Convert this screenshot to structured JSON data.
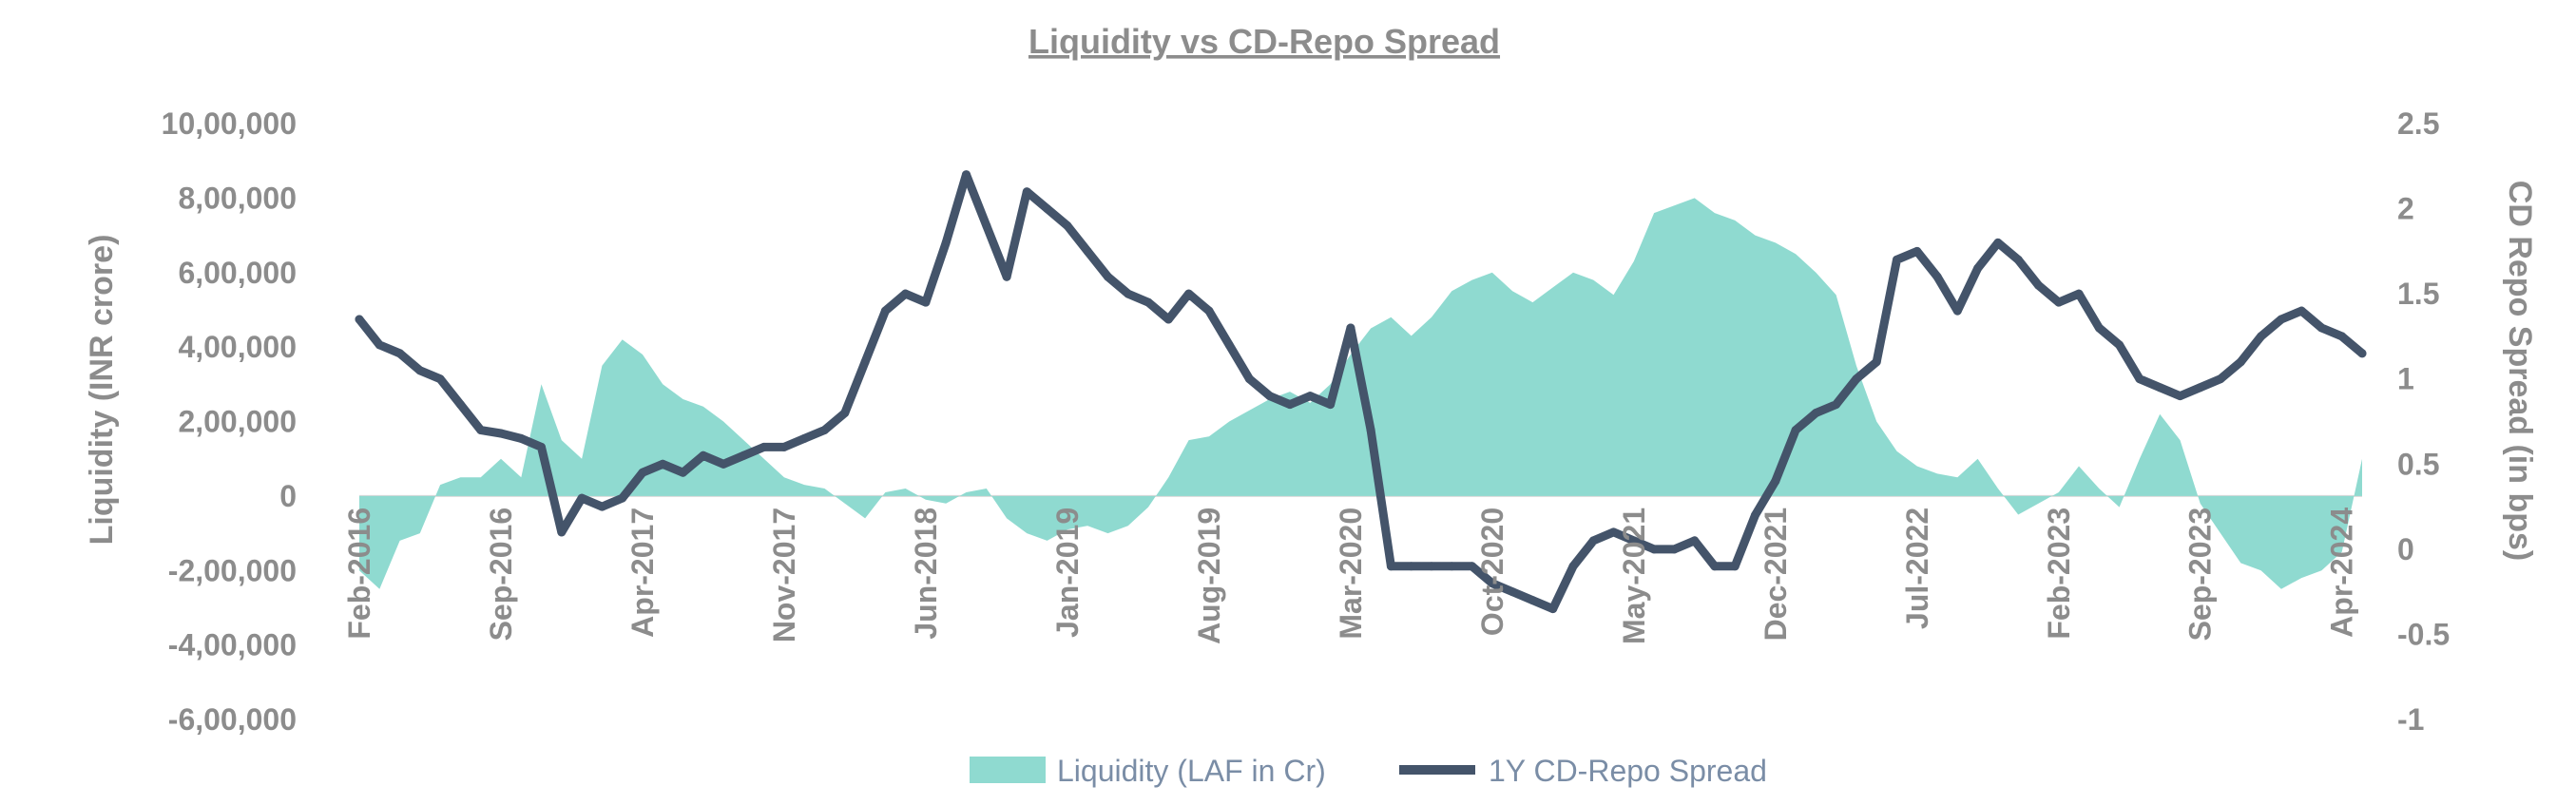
{
  "chart_data": {
    "type": "area+line",
    "title": "Liquidity vs CD-Repo Spread",
    "y_left_label": "Liquidity (INR crore)",
    "y_right_label": "CD Repo Spread (in bps)",
    "y_left_ticks": [
      "10,00,000",
      "8,00,000",
      "6,00,000",
      "4,00,000",
      "2,00,000",
      "0",
      "-2,00,000",
      "-4,00,000",
      "-6,00,000"
    ],
    "y_left_range": [
      -600000,
      1000000
    ],
    "y_right_ticks": [
      "2.5",
      "2",
      "1.5",
      "1",
      "0.5",
      "0",
      "-0.5",
      "-1"
    ],
    "y_right_range": [
      -1,
      2.5
    ],
    "x_range": [
      "2016-02",
      "2024-05"
    ],
    "x_ticks": [
      "Feb-2016",
      "Sep-2016",
      "Apr-2017",
      "Nov-2017",
      "Jun-2018",
      "Jan-2019",
      "Aug-2019",
      "Mar-2020",
      "Oct-2020",
      "May-2021",
      "Dec-2021",
      "Jul-2022",
      "Feb-2023",
      "Sep-2023",
      "Apr-2024"
    ],
    "legend_placement": "bottom-center",
    "colors": {
      "liquidity": "#8fdad0",
      "spread": "#44546a"
    },
    "series": [
      {
        "name": "Liquidity (LAF in Cr)",
        "axis": "left",
        "kind": "area",
        "x": [
          "2016-02",
          "2016-03",
          "2016-04",
          "2016-05",
          "2016-06",
          "2016-07",
          "2016-08",
          "2016-09",
          "2016-10",
          "2016-11",
          "2016-12",
          "2017-01",
          "2017-02",
          "2017-03",
          "2017-04",
          "2017-05",
          "2017-06",
          "2017-07",
          "2017-08",
          "2017-09",
          "2017-10",
          "2017-11",
          "2017-12",
          "2018-01",
          "2018-02",
          "2018-03",
          "2018-04",
          "2018-05",
          "2018-06",
          "2018-07",
          "2018-08",
          "2018-09",
          "2018-10",
          "2018-11",
          "2018-12",
          "2019-01",
          "2019-02",
          "2019-03",
          "2019-04",
          "2019-05",
          "2019-06",
          "2019-07",
          "2019-08",
          "2019-09",
          "2019-10",
          "2019-11",
          "2019-12",
          "2020-01",
          "2020-02",
          "2020-03",
          "2020-04",
          "2020-05",
          "2020-06",
          "2020-07",
          "2020-08",
          "2020-09",
          "2020-10",
          "2020-11",
          "2020-12",
          "2021-01",
          "2021-02",
          "2021-03",
          "2021-04",
          "2021-05",
          "2021-06",
          "2021-07",
          "2021-08",
          "2021-09",
          "2021-10",
          "2021-11",
          "2021-12",
          "2022-01",
          "2022-02",
          "2022-03",
          "2022-04",
          "2022-05",
          "2022-06",
          "2022-07",
          "2022-08",
          "2022-09",
          "2022-10",
          "2022-11",
          "2022-12",
          "2023-01",
          "2023-02",
          "2023-03",
          "2023-04",
          "2023-05",
          "2023-06",
          "2023-07",
          "2023-08",
          "2023-09",
          "2023-10",
          "2023-11",
          "2023-12",
          "2024-01",
          "2024-02",
          "2024-03",
          "2024-04",
          "2024-05"
        ],
        "values": [
          -200000,
          -250000,
          -120000,
          -100000,
          30000,
          50000,
          50000,
          100000,
          50000,
          300000,
          150000,
          100000,
          350000,
          420000,
          380000,
          300000,
          260000,
          240000,
          200000,
          150000,
          100000,
          50000,
          30000,
          20000,
          -20000,
          -60000,
          10000,
          20000,
          -10000,
          -20000,
          10000,
          20000,
          -60000,
          -100000,
          -120000,
          -90000,
          -80000,
          -100000,
          -80000,
          -30000,
          50000,
          150000,
          160000,
          200000,
          230000,
          260000,
          280000,
          250000,
          300000,
          380000,
          450000,
          480000,
          430000,
          480000,
          550000,
          580000,
          600000,
          550000,
          520000,
          560000,
          600000,
          580000,
          540000,
          630000,
          760000,
          780000,
          800000,
          760000,
          740000,
          700000,
          680000,
          650000,
          600000,
          540000,
          350000,
          200000,
          120000,
          80000,
          60000,
          50000,
          100000,
          20000,
          -50000,
          -20000,
          10000,
          80000,
          20000,
          -30000,
          100000,
          220000,
          150000,
          -20000,
          -100000,
          -180000,
          -200000,
          -250000,
          -220000,
          -200000,
          -150000,
          100000
        ]
      },
      {
        "name": "1Y CD-Repo Spread",
        "axis": "right",
        "kind": "line",
        "x": [
          "2016-02",
          "2016-03",
          "2016-04",
          "2016-05",
          "2016-06",
          "2016-07",
          "2016-08",
          "2016-09",
          "2016-10",
          "2016-11",
          "2016-12",
          "2017-01",
          "2017-02",
          "2017-03",
          "2017-04",
          "2017-05",
          "2017-06",
          "2017-07",
          "2017-08",
          "2017-09",
          "2017-10",
          "2017-11",
          "2017-12",
          "2018-01",
          "2018-02",
          "2018-03",
          "2018-04",
          "2018-05",
          "2018-06",
          "2018-07",
          "2018-08",
          "2018-09",
          "2018-10",
          "2018-11",
          "2018-12",
          "2019-01",
          "2019-02",
          "2019-03",
          "2019-04",
          "2019-05",
          "2019-06",
          "2019-07",
          "2019-08",
          "2019-09",
          "2019-10",
          "2019-11",
          "2019-12",
          "2020-01",
          "2020-02",
          "2020-03",
          "2020-04",
          "2020-05",
          "2020-06",
          "2020-07",
          "2020-08",
          "2020-09",
          "2020-10",
          "2020-11",
          "2020-12",
          "2021-01",
          "2021-02",
          "2021-03",
          "2021-04",
          "2021-05",
          "2021-06",
          "2021-07",
          "2021-08",
          "2021-09",
          "2021-10",
          "2021-11",
          "2021-12",
          "2022-01",
          "2022-02",
          "2022-03",
          "2022-04",
          "2022-05",
          "2022-06",
          "2022-07",
          "2022-08",
          "2022-09",
          "2022-10",
          "2022-11",
          "2022-12",
          "2023-01",
          "2023-02",
          "2023-03",
          "2023-04",
          "2023-05",
          "2023-06",
          "2023-07",
          "2023-08",
          "2023-09",
          "2023-10",
          "2023-11",
          "2023-12",
          "2024-01",
          "2024-02",
          "2024-03",
          "2024-04",
          "2024-05"
        ],
        "values": [
          1.35,
          1.2,
          1.15,
          1.05,
          1.0,
          0.85,
          0.7,
          0.68,
          0.65,
          0.6,
          0.1,
          0.3,
          0.25,
          0.3,
          0.45,
          0.5,
          0.45,
          0.55,
          0.5,
          0.55,
          0.6,
          0.6,
          0.65,
          0.7,
          0.8,
          1.1,
          1.4,
          1.5,
          1.45,
          1.8,
          2.2,
          1.9,
          1.6,
          2.1,
          2.0,
          1.9,
          1.75,
          1.6,
          1.5,
          1.45,
          1.35,
          1.5,
          1.4,
          1.2,
          1.0,
          0.9,
          0.85,
          0.9,
          0.85,
          1.3,
          0.7,
          -0.1,
          -0.1,
          -0.1,
          -0.1,
          -0.1,
          -0.2,
          -0.25,
          -0.3,
          -0.35,
          -0.1,
          0.05,
          0.1,
          0.05,
          0.0,
          0.0,
          0.05,
          -0.1,
          -0.1,
          0.2,
          0.4,
          0.7,
          0.8,
          0.85,
          1.0,
          1.1,
          1.7,
          1.75,
          1.6,
          1.4,
          1.65,
          1.8,
          1.7,
          1.55,
          1.45,
          1.5,
          1.3,
          1.2,
          1.0,
          0.95,
          0.9,
          0.95,
          1.0,
          1.1,
          1.25,
          1.35,
          1.4,
          1.3,
          1.25,
          1.15
        ]
      }
    ]
  }
}
